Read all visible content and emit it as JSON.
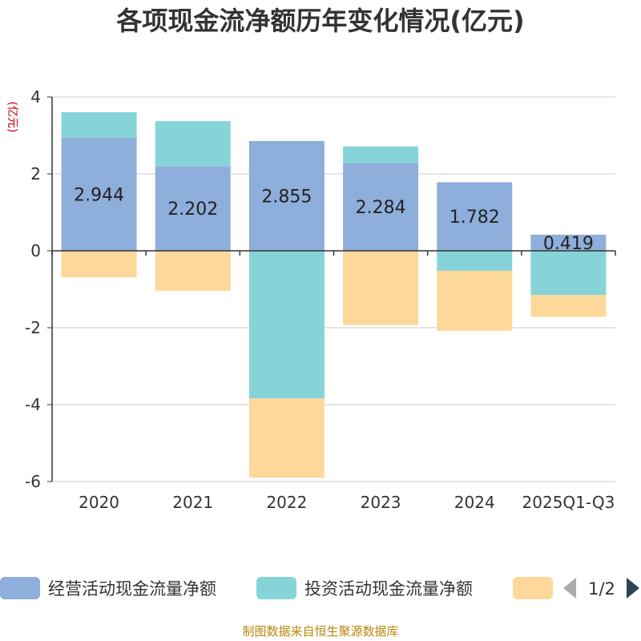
{
  "title": "各项现金流净额历年变化情况(亿元)",
  "source": "制图数据来自恒生聚源数据库",
  "chart_data": {
    "type": "bar",
    "stacked": true,
    "ylabel": "(亿元)",
    "ylim": [
      -6,
      4
    ],
    "yticks": [
      4,
      2,
      0,
      -2,
      -4,
      -6
    ],
    "categories": [
      "2020",
      "2021",
      "2022",
      "2023",
      "2024",
      "2025Q1-Q3"
    ],
    "series": [
      {
        "name": "经营活动现金流量净额",
        "color": "#8eaedb",
        "values": [
          2.944,
          2.202,
          2.855,
          2.284,
          1.782,
          0.419
        ],
        "labels": [
          "2.944",
          "2.202",
          "2.855",
          "2.284",
          "1.782",
          "0.419"
        ]
      },
      {
        "name": "投资活动现金流量净额",
        "color": "#86d4d8",
        "values": [
          0.66,
          1.17,
          -3.84,
          0.43,
          -0.52,
          -1.15
        ]
      },
      {
        "name": "",
        "color": "#fdd89b",
        "values": [
          -0.69,
          -1.04,
          -2.06,
          -1.93,
          -1.56,
          -0.57
        ]
      }
    ]
  },
  "legend": {
    "pager": "1/2",
    "prev_icon": "triangle-left-icon",
    "next_icon": "triangle-right-icon"
  }
}
